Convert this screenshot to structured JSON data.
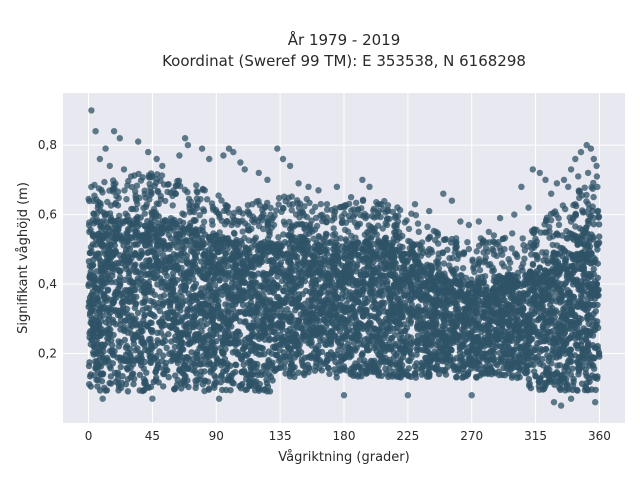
{
  "chart_data": {
    "type": "scatter",
    "title_line1": "År 1979 - 2019",
    "title_line2": "Koordinat (Sweref 99 TM): E 353538, N 6168298",
    "xlabel": "Vågriktning (grader)",
    "ylabel": "Signifikant våghöjd (m)",
    "xlim": [
      -18,
      378
    ],
    "ylim": [
      0.0,
      0.95
    ],
    "x_ticks": [
      0,
      45,
      90,
      135,
      180,
      225,
      270,
      315,
      360
    ],
    "x_tick_labels": [
      "0",
      "45",
      "90",
      "135",
      "180",
      "225",
      "270",
      "315",
      "360"
    ],
    "y_ticks": [
      0.2,
      0.4,
      0.6,
      0.8
    ],
    "y_tick_labels": [
      "0,2",
      "0,4",
      "0,6",
      "0,8"
    ],
    "grid": true,
    "colors": {
      "marker": "#2e5266",
      "background": "#e8e8f0",
      "grid": "#ffffff"
    },
    "series": [
      {
        "points": [
          [
            2,
            0.9
          ],
          [
            5,
            0.84
          ],
          [
            18,
            0.84
          ],
          [
            22,
            0.82
          ],
          [
            12,
            0.79
          ],
          [
            8,
            0.76
          ],
          [
            15,
            0.74
          ],
          [
            35,
            0.81
          ],
          [
            42,
            0.78
          ],
          [
            48,
            0.76
          ],
          [
            52,
            0.74
          ],
          [
            25,
            0.73
          ],
          [
            30,
            0.71
          ],
          [
            68,
            0.82
          ],
          [
            70,
            0.8
          ],
          [
            64,
            0.77
          ],
          [
            80,
            0.79
          ],
          [
            85,
            0.76
          ],
          [
            95,
            0.77
          ],
          [
            99,
            0.79
          ],
          [
            102,
            0.78
          ],
          [
            107,
            0.75
          ],
          [
            110,
            0.73
          ],
          [
            120,
            0.72
          ],
          [
            126,
            0.7
          ],
          [
            133,
            0.79
          ],
          [
            137,
            0.76
          ],
          [
            142,
            0.74
          ],
          [
            148,
            0.69
          ],
          [
            155,
            0.68
          ],
          [
            162,
            0.67
          ],
          [
            175,
            0.68
          ],
          [
            168,
            0.63
          ],
          [
            185,
            0.65
          ],
          [
            193,
            0.7
          ],
          [
            198,
            0.68
          ],
          [
            205,
            0.63
          ],
          [
            211,
            0.61
          ],
          [
            218,
            0.58
          ],
          [
            230,
            0.63
          ],
          [
            240,
            0.61
          ],
          [
            250,
            0.66
          ],
          [
            256,
            0.64
          ],
          [
            262,
            0.58
          ],
          [
            268,
            0.57
          ],
          [
            275,
            0.58
          ],
          [
            282,
            0.55
          ],
          [
            290,
            0.59
          ],
          [
            300,
            0.6
          ],
          [
            305,
            0.68
          ],
          [
            310,
            0.62
          ],
          [
            313,
            0.73
          ],
          [
            318,
            0.72
          ],
          [
            322,
            0.7
          ],
          [
            326,
            0.66
          ],
          [
            330,
            0.69
          ],
          [
            335,
            0.7
          ],
          [
            340,
            0.73
          ],
          [
            343,
            0.76
          ],
          [
            347,
            0.78
          ],
          [
            351,
            0.8
          ],
          [
            354,
            0.79
          ],
          [
            356,
            0.76
          ],
          [
            358,
            0.74
          ],
          [
            352,
            0.72
          ],
          [
            345,
            0.71
          ],
          [
            338,
            0.68
          ],
          [
            200,
            0.56
          ],
          [
            215,
            0.53
          ],
          [
            235,
            0.52
          ],
          [
            245,
            0.55
          ],
          [
            280,
            0.52
          ],
          [
            292,
            0.53
          ],
          [
            45,
            0.07
          ],
          [
            92,
            0.07
          ],
          [
            180,
            0.08
          ],
          [
            225,
            0.08
          ],
          [
            270,
            0.08
          ],
          [
            328,
            0.06
          ],
          [
            333,
            0.05
          ],
          [
            340,
            0.07
          ],
          [
            357,
            0.06
          ],
          [
            10,
            0.07
          ]
        ]
      }
    ]
  }
}
